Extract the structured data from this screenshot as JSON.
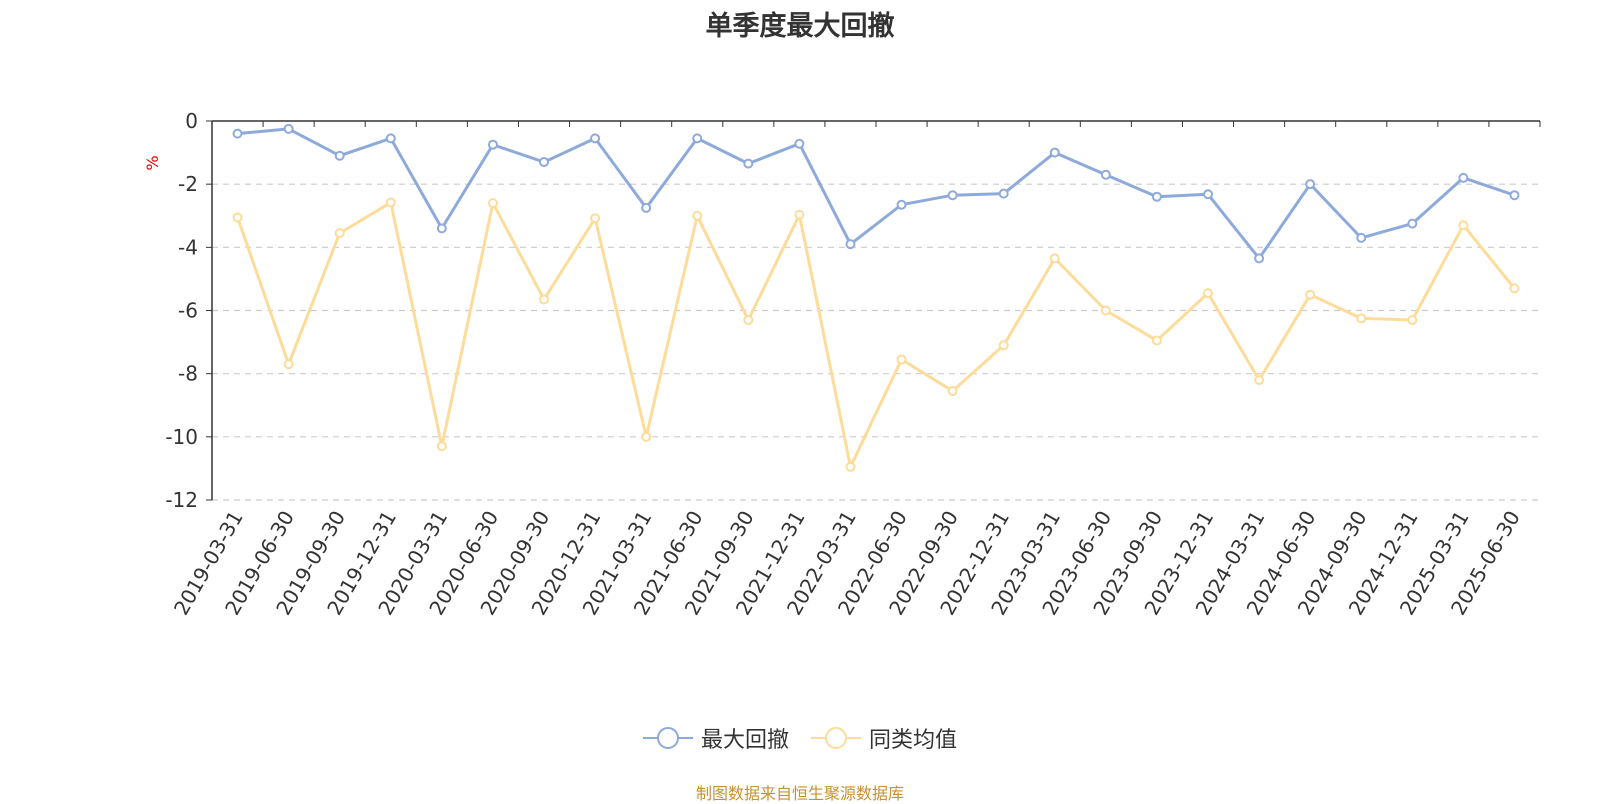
{
  "title": "单季度最大回撤",
  "source_note": "制图数据来自恒生聚源数据库",
  "chart_data": {
    "type": "line",
    "title": "单季度最大回撤",
    "ylabel": "%",
    "xlabel": "",
    "ylim": [
      -12,
      0
    ],
    "yticks": [
      0,
      -2,
      -4,
      -6,
      -8,
      -10,
      -12
    ],
    "grid": true,
    "legend_position": "bottom",
    "categories": [
      "2019-03-31",
      "2019-06-30",
      "2019-09-30",
      "2019-12-31",
      "2020-03-31",
      "2020-06-30",
      "2020-09-30",
      "2020-12-31",
      "2021-03-31",
      "2021-06-30",
      "2021-09-30",
      "2021-12-31",
      "2022-03-31",
      "2022-06-30",
      "2022-09-30",
      "2022-12-31",
      "2023-03-31",
      "2023-06-30",
      "2023-09-30",
      "2023-12-31",
      "2024-03-31",
      "2024-06-30",
      "2024-09-30",
      "2024-12-31",
      "2025-03-31",
      "2025-06-30"
    ],
    "series": [
      {
        "name": "最大回撤",
        "color": "#8eaadb",
        "values": [
          -0.4,
          -0.25,
          -1.1,
          -0.55,
          -3.4,
          -0.75,
          -1.3,
          -0.55,
          -2.75,
          -0.55,
          -1.35,
          -0.72,
          -3.9,
          -2.65,
          -2.35,
          -2.3,
          -1.0,
          -1.7,
          -2.4,
          -2.32,
          -4.35,
          -2.0,
          -3.7,
          -3.25,
          -1.8,
          -2.35
        ]
      },
      {
        "name": "同类均值",
        "color": "#fddc9a",
        "values": [
          -3.05,
          -7.7,
          -3.55,
          -2.58,
          -10.3,
          -2.6,
          -5.65,
          -3.08,
          -10.0,
          -3.0,
          -6.3,
          -2.97,
          -10.95,
          -7.55,
          -8.55,
          -7.1,
          -4.35,
          -6.0,
          -6.95,
          -5.45,
          -8.2,
          -5.5,
          -6.25,
          -6.3,
          -3.3,
          -5.3
        ]
      }
    ]
  }
}
